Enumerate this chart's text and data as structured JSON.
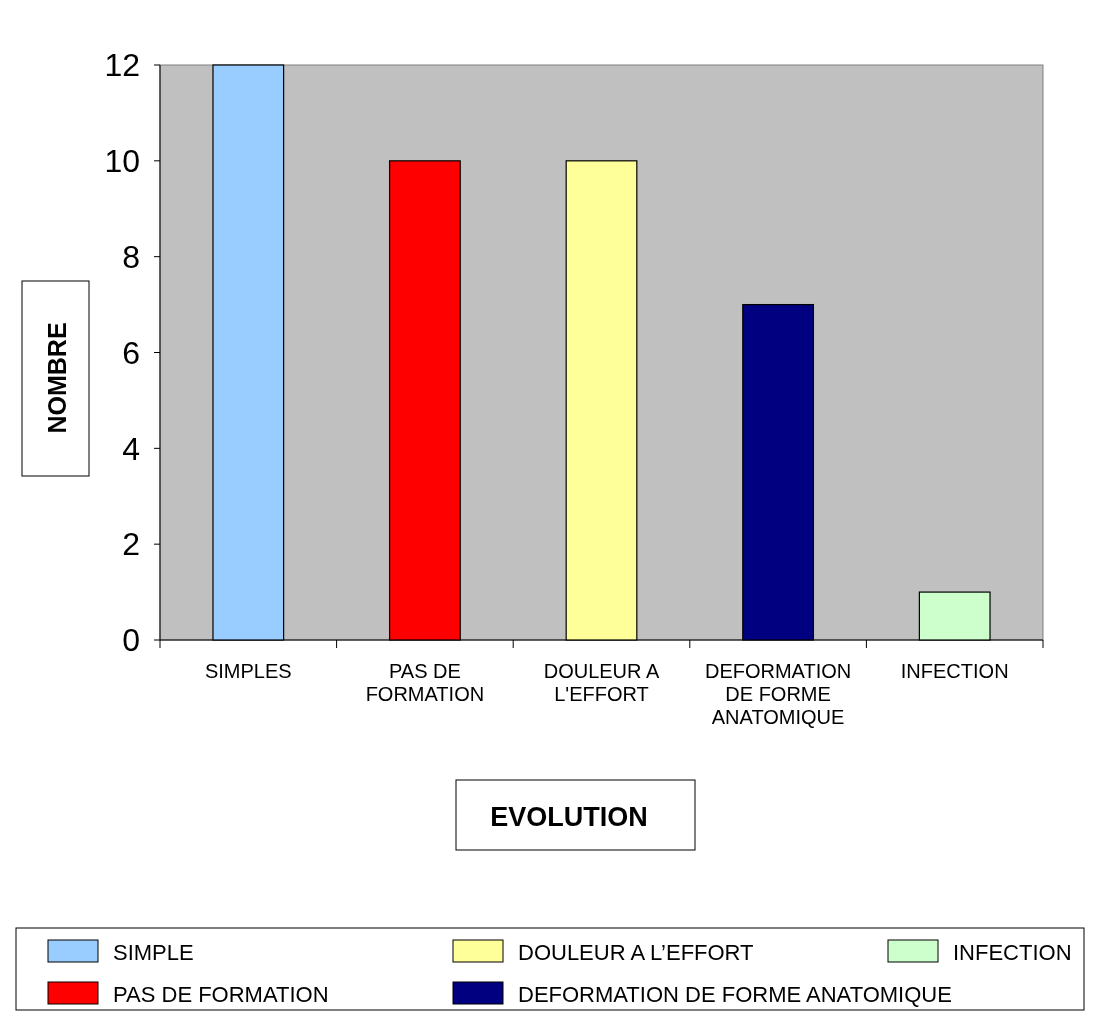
{
  "chart_data": {
    "type": "bar",
    "stacked": true,
    "xlabel": "EVOLUTION",
    "ylabel": "NOMBRE",
    "categories": [
      "SIMPLES",
      "PAS DE FORMATION",
      "DOULEUR A L'EFFORT",
      "DEFORMATION DE FORME ANATOMIQUE",
      "INFECTION"
    ],
    "series": [
      {
        "name": "SIMPLE",
        "color": "#99ccff",
        "values": [
          12,
          null,
          null,
          null,
          null
        ]
      },
      {
        "name": "PAS DE FORMATION",
        "color": "#ff0000",
        "values": [
          null,
          10,
          null,
          null,
          null
        ]
      },
      {
        "name": "DOULEUR A L’EFFORT",
        "color": "#ffff99",
        "values": [
          null,
          null,
          10,
          null,
          null
        ]
      },
      {
        "name": "DEFORMATION DE FORME ANATOMIQUE",
        "color": "#000080",
        "values": [
          null,
          null,
          null,
          7,
          null
        ]
      },
      {
        "name": "INFECTION",
        "color": "#ccffcc",
        "values": [
          null,
          null,
          null,
          null,
          1
        ]
      }
    ],
    "ylim": [
      0,
      12
    ],
    "yticks": [
      0,
      2,
      4,
      6,
      8,
      10,
      12
    ],
    "grid": false,
    "legend": "bottom"
  }
}
